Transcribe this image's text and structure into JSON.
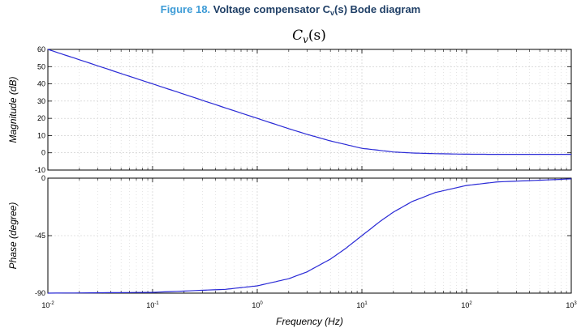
{
  "caption": {
    "number": "Figure 18.",
    "title_pre": "Voltage compensator C",
    "title_sub": "v",
    "title_post": "(s) Bode diagram"
  },
  "colors": {
    "line": "#2a2ad6",
    "grid": "#c8c8c8",
    "caption_number": "#3d9bd6",
    "caption_title": "#1f3f66"
  },
  "chart_data": [
    {
      "type": "line",
      "title": "C_v(s)",
      "title_display": {
        "base": "C",
        "sub": "v",
        "tail": "(s)"
      },
      "xscale": "log",
      "xlim": [
        0.01,
        1000
      ],
      "x_ticks": [
        0.01,
        0.1,
        1,
        10,
        100,
        1000
      ],
      "x_tick_labels": [
        {
          "base": "10",
          "exp": "-2"
        },
        {
          "base": "10",
          "exp": "-1"
        },
        {
          "base": "10",
          "exp": "0"
        },
        {
          "base": "10",
          "exp": "1"
        },
        {
          "base": "10",
          "exp": "2"
        },
        {
          "base": "10",
          "exp": "3"
        }
      ],
      "ylabel": "Magnitude (dB)",
      "ylim": [
        -10,
        60
      ],
      "y_ticks": [
        -10,
        0,
        10,
        20,
        30,
        40,
        50,
        60
      ],
      "y_tick_labels": [
        "-10",
        "0",
        "10",
        "20",
        "30",
        "40",
        "50",
        "60"
      ],
      "grid": true,
      "series": [
        {
          "x": [
            0.01,
            0.02,
            0.05,
            0.1,
            0.2,
            0.5,
            1,
            2,
            3,
            5,
            10,
            20,
            30,
            50,
            100,
            200,
            1000
          ],
          "y": [
            60,
            54,
            46,
            40,
            34,
            26,
            20,
            14,
            10.7,
            6.9,
            2.6,
            0.5,
            -0.1,
            -0.5,
            -0.8,
            -0.9,
            -0.9
          ]
        }
      ]
    },
    {
      "type": "line",
      "xlabel": "Frequency (Hz)",
      "ylabel": "Phase (degree)",
      "xscale": "log",
      "xlim": [
        0.01,
        1000
      ],
      "ylim": [
        -90,
        0
      ],
      "y_ticks": [
        -90,
        -45,
        0
      ],
      "y_tick_labels": [
        "-90",
        "-45",
        "0"
      ],
      "grid": true,
      "series": [
        {
          "x": [
            0.01,
            0.1,
            0.5,
            1,
            2,
            3,
            5,
            7,
            10,
            15,
            20,
            30,
            50,
            100,
            200,
            1000
          ],
          "y": [
            -90,
            -89.4,
            -87,
            -84.3,
            -78.7,
            -73.3,
            -63.4,
            -55,
            -45,
            -33.7,
            -26.6,
            -18.4,
            -11.3,
            -5.7,
            -2.9,
            -0.6
          ]
        }
      ]
    }
  ]
}
